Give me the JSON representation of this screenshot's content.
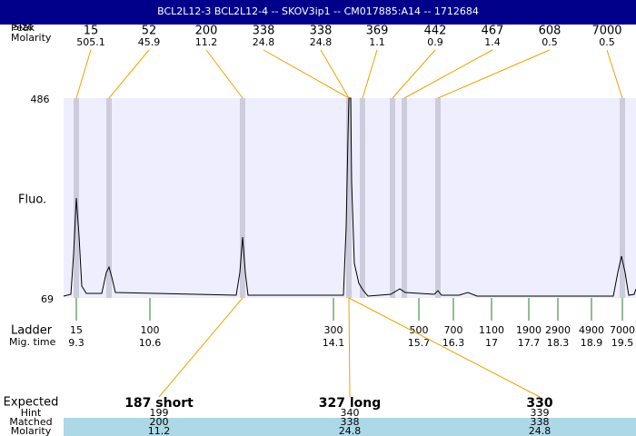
{
  "header": {
    "title": "BCL2L12-3  BCL2L12-4 -- SKOV3ip1 -- CM017885:A14 -- 1712684"
  },
  "peaks": {
    "label": "Peak",
    "size_label": "Size",
    "molarity_label": "Molarity",
    "items": [
      {
        "size": "15",
        "molarity": "505.1"
      },
      {
        "size": "52",
        "molarity": "45.9"
      },
      {
        "size": "200",
        "molarity": "11.2"
      },
      {
        "size": "338",
        "molarity": "24.8"
      },
      {
        "size": "338",
        "molarity": "24.8"
      },
      {
        "size": "369",
        "molarity": "1.1"
      },
      {
        "size": "442",
        "molarity": "0.9"
      },
      {
        "size": "467",
        "molarity": "1.4"
      },
      {
        "size": "608",
        "molarity": "0.5"
      },
      {
        "size": "7000",
        "molarity": "0.5"
      }
    ]
  },
  "axis": {
    "ymax": "486",
    "ymin": "69",
    "ylabel": "Fluo."
  },
  "ladder": {
    "label": "Ladder",
    "time_label": "Mig. time",
    "items": [
      {
        "size": "15",
        "time": "9.3"
      },
      {
        "size": "100",
        "time": "10.6"
      },
      {
        "size": "300",
        "time": "14.1"
      },
      {
        "size": "500",
        "time": "15.7"
      },
      {
        "size": "700",
        "time": "16.3"
      },
      {
        "size": "1100",
        "time": "17"
      },
      {
        "size": "1900",
        "time": "17.7"
      },
      {
        "size": "2900",
        "time": "18.3"
      },
      {
        "size": "4900",
        "time": "18.9"
      },
      {
        "size": "7000",
        "time": "19.5"
      }
    ]
  },
  "expected": {
    "label": "Expected",
    "hint_label": "Hint",
    "matched_label": "Matched",
    "molarity_label": "Molarity",
    "items": [
      {
        "name": "187 short",
        "hint": "199",
        "matched": "200",
        "molarity": "11.2"
      },
      {
        "name": "327 long",
        "hint": "340",
        "matched": "338",
        "molarity": "24.8"
      },
      {
        "name": "330",
        "hint": "339",
        "matched": "338",
        "molarity": "24.8"
      }
    ]
  }
}
